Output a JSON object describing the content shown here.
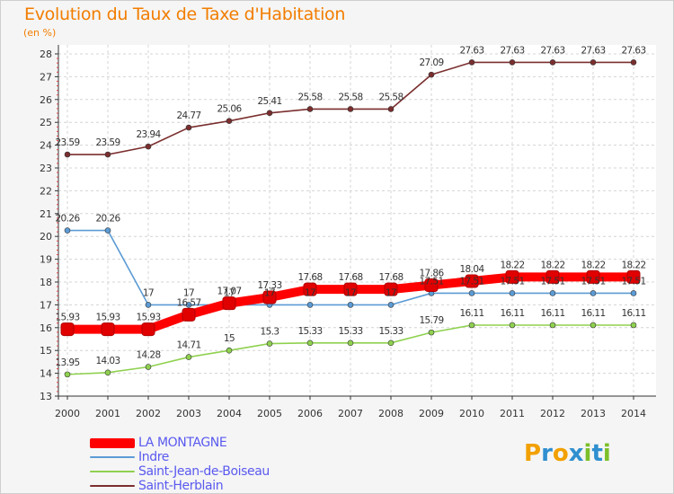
{
  "title": "Evolution du Taux de Taxe d'Habitation",
  "unit_label": "(en %)",
  "logo": {
    "text": "Proxiti",
    "letters": [
      {
        "ch": "P",
        "color": "#f2a000"
      },
      {
        "ch": "r",
        "color": "#2f8fd0"
      },
      {
        "ch": "o",
        "color": "#f2a000"
      },
      {
        "ch": "x",
        "color": "#2f8fd0"
      },
      {
        "ch": "i",
        "color": "#7cbf2a"
      },
      {
        "ch": "t",
        "color": "#2f8fd0"
      },
      {
        "ch": "i",
        "color": "#7cbf2a"
      }
    ]
  },
  "chart_data": {
    "type": "line",
    "title": "Evolution du Taux de Taxe d'Habitation",
    "ylabel": "(en %)",
    "xlabel": "",
    "x": [
      "2000",
      "2001",
      "2002",
      "2003",
      "2004",
      "2005",
      "2006",
      "2007",
      "2008",
      "2009",
      "2010",
      "2011",
      "2012",
      "2013",
      "2014"
    ],
    "ylim": [
      13,
      28
    ],
    "yticks": [
      13,
      14,
      15,
      16,
      17,
      18,
      19,
      20,
      21,
      22,
      23,
      24,
      25,
      26,
      27,
      28
    ],
    "grid": true,
    "legend_position": "bottom-left",
    "series": [
      {
        "name": "LA MONTAGNE",
        "color": "#ff0000",
        "values": [
          15.93,
          15.93,
          15.93,
          16.57,
          17.07,
          17.33,
          17.68,
          17.68,
          17.68,
          17.86,
          18.04,
          18.22,
          18.22,
          18.22,
          18.22
        ],
        "labels": [
          "15.93",
          "15.93",
          "15.93",
          "16.57",
          "17.07",
          "17.33",
          "17.68",
          "17.68",
          "17.68",
          "17.86",
          "18.04",
          "18.22",
          "18.22",
          "18.22",
          "18.22"
        ]
      },
      {
        "name": "Indre",
        "color": "#5b9bd5",
        "values": [
          20.26,
          20.26,
          17,
          17,
          17,
          17,
          17,
          17,
          17,
          17.51,
          17.51,
          17.51,
          17.51,
          17.51,
          17.51
        ],
        "labels": [
          "20.26",
          "20.26",
          "17",
          "17",
          "17",
          "17",
          "17",
          "17",
          "17",
          "17.51",
          "17.51",
          "17.51",
          "17.51",
          "17.51",
          "17.51"
        ]
      },
      {
        "name": "Saint-Jean-de-Boiseau",
        "color": "#8fd14f",
        "values": [
          13.95,
          14.03,
          14.28,
          14.71,
          15,
          15.3,
          15.33,
          15.33,
          15.33,
          15.79,
          16.11,
          16.11,
          16.11,
          16.11,
          16.11
        ],
        "labels": [
          "13.95",
          "14.03",
          "14.28",
          "14.71",
          "15",
          "15.3",
          "15.33",
          "15.33",
          "15.33",
          "15.79",
          "16.11",
          "16.11",
          "16.11",
          "16.11",
          "16.11"
        ]
      },
      {
        "name": "Saint-Herblain",
        "color": "#7b2e2e",
        "values": [
          23.59,
          23.59,
          23.94,
          24.77,
          25.06,
          25.41,
          25.58,
          25.58,
          25.58,
          27.09,
          27.63,
          27.63,
          27.63,
          27.63,
          27.63
        ],
        "labels": [
          "23.59",
          "23.59",
          "23.94",
          "24.77",
          "25.06",
          "25.41",
          "25.58",
          "25.58",
          "25.58",
          "27.09",
          "27.63",
          "27.63",
          "27.63",
          "27.63",
          "27.63"
        ]
      }
    ]
  },
  "legend": [
    {
      "label": "LA MONTAGNE",
      "color": "#ff0000"
    },
    {
      "label": "Indre",
      "color": "#5b9bd5"
    },
    {
      "label": "Saint-Jean-de-Boiseau",
      "color": "#8fd14f"
    },
    {
      "label": "Saint-Herblain",
      "color": "#7b2e2e"
    }
  ]
}
